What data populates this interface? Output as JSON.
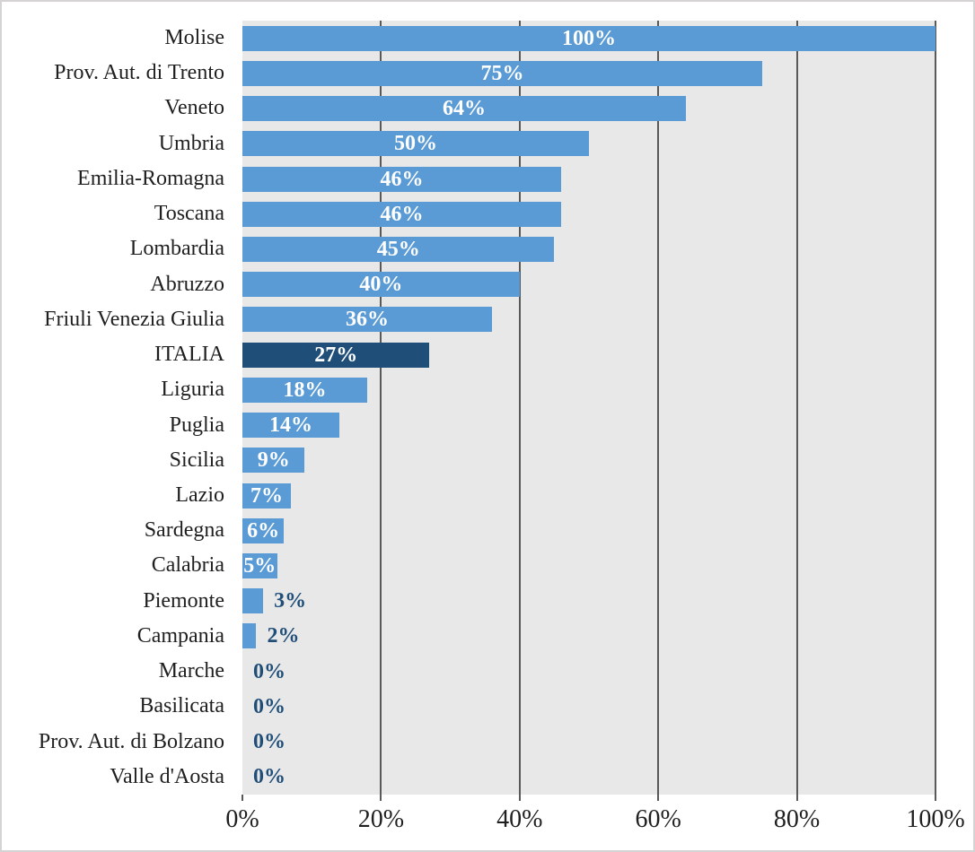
{
  "chart_data": {
    "type": "bar",
    "orientation": "horizontal",
    "title": "",
    "xlabel": "",
    "ylabel": "",
    "xlim": [
      0,
      100
    ],
    "x_tick_labels": [
      "0%",
      "20%",
      "40%",
      "60%",
      "80%",
      "100%"
    ],
    "grid": true,
    "legend_position": "none",
    "categories": [
      "Molise",
      "Prov. Aut. di Trento",
      "Veneto",
      "Umbria",
      "Emilia-Romagna",
      "Toscana",
      "Lombardia",
      "Abruzzo",
      "Friuli Venezia Giulia",
      "ITALIA",
      "Liguria",
      "Puglia",
      "Sicilia",
      "Lazio",
      "Sardegna",
      "Calabria",
      "Piemonte",
      "Campania",
      "Marche",
      "Basilicata",
      "Prov. Aut. di Bolzano",
      "Valle d'Aosta"
    ],
    "values": [
      100,
      75,
      64,
      50,
      46,
      46,
      45,
      40,
      36,
      27,
      18,
      14,
      9,
      7,
      6,
      5,
      3,
      2,
      0,
      0,
      0,
      0
    ],
    "value_labels": [
      "100%",
      "75%",
      "64%",
      "50%",
      "46%",
      "46%",
      "45%",
      "40%",
      "36%",
      "27%",
      "18%",
      "14%",
      "9%",
      "7%",
      "6%",
      "5%",
      "3%",
      "2%",
      "0%",
      "0%",
      "0%",
      "0%"
    ],
    "highlight_category": "ITALIA",
    "colors": {
      "bar": "#5B9BD5",
      "bar_highlight": "#1F4E79",
      "plot_background": "#E9E8E8",
      "gridline": "#595959",
      "label_inside": "#FFFFFF",
      "label_outside": "#1F4E79",
      "axis_text": "#1F1F1F",
      "frame_border": "#D5D3D4"
    }
  }
}
